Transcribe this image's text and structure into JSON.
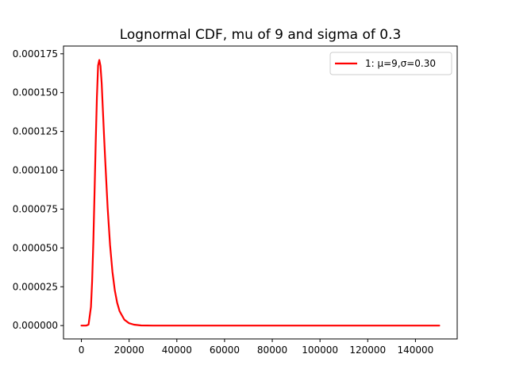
{
  "chart_data": {
    "type": "line",
    "title": "Lognormal CDF, mu of 9 and sigma of 0.3",
    "xlabel": "",
    "ylabel": "",
    "xlim": [
      -7500,
      157500
    ],
    "ylim": [
      -8.6e-06,
      0.00018
    ],
    "x_ticks": [
      0,
      20000,
      40000,
      60000,
      80000,
      100000,
      120000,
      140000
    ],
    "x_tick_labels": [
      "0",
      "20000",
      "40000",
      "60000",
      "80000",
      "100000",
      "120000",
      "140000"
    ],
    "y_ticks": [
      0,
      2.5e-05,
      5e-05,
      7.5e-05,
      0.0001,
      0.000125,
      0.00015,
      0.000175
    ],
    "y_tick_labels": [
      "0.000000",
      "0.000025",
      "0.000050",
      "0.000075",
      "0.000100",
      "0.000125",
      "0.000150",
      "0.000175"
    ],
    "grid": false,
    "legend_position": "top-right",
    "series": [
      {
        "name": "1: μ=9,σ=0.30",
        "color": "#ff0000",
        "x": [
          0,
          2000,
          3000,
          4000,
          4500,
          5000,
          5500,
          6000,
          6500,
          7000,
          7500,
          8000,
          8500,
          9000,
          9500,
          10000,
          11000,
          12000,
          13000,
          14000,
          15000,
          16000,
          18000,
          20000,
          22000,
          25000,
          30000,
          40000,
          60000,
          80000,
          100000,
          120000,
          150000
        ],
        "y": [
          0,
          0,
          6e-07,
          1.19e-05,
          2.85e-05,
          5.37e-05,
          8.49e-05,
          0.0001177,
          0.0001469,
          0.0001675,
          0.000171,
          0.0001672,
          0.000156,
          0.000139,
          0.000122,
          0.0001059,
          7.59e-05,
          5.21e-05,
          3.48e-05,
          2.27e-05,
          1.46e-05,
          9.3e-06,
          3.8e-06,
          1.5e-06,
          6e-07,
          1e-07,
          0,
          0,
          0,
          0,
          0,
          0,
          0
        ]
      }
    ]
  }
}
